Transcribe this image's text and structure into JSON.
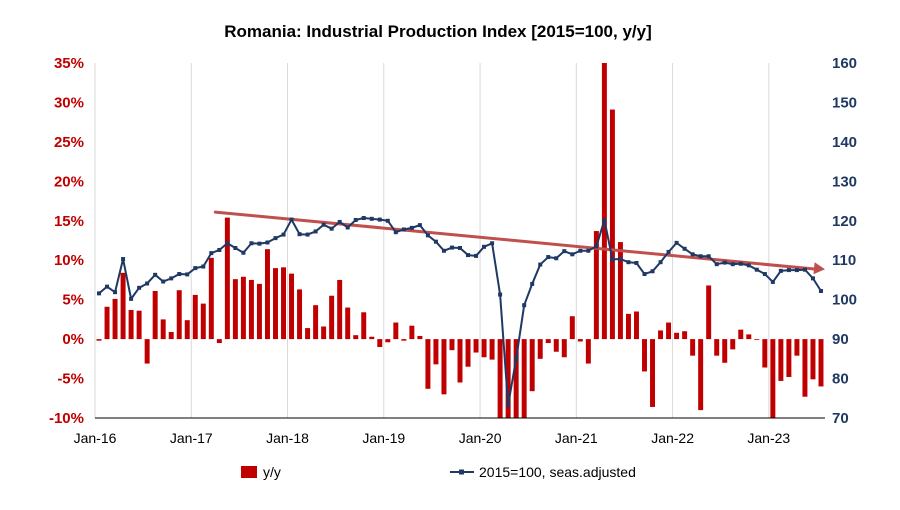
{
  "chart_data": {
    "type": "bar+line",
    "title": "Romania: Industrial Production Index [2015=100, y/y]",
    "x": [
      "2016-01",
      "2016-02",
      "2016-03",
      "2016-04",
      "2016-05",
      "2016-06",
      "2016-07",
      "2016-08",
      "2016-09",
      "2016-10",
      "2016-11",
      "2016-12",
      "2017-01",
      "2017-02",
      "2017-03",
      "2017-04",
      "2017-05",
      "2017-06",
      "2017-07",
      "2017-08",
      "2017-09",
      "2017-10",
      "2017-11",
      "2017-12",
      "2018-01",
      "2018-02",
      "2018-03",
      "2018-04",
      "2018-05",
      "2018-06",
      "2018-07",
      "2018-08",
      "2018-09",
      "2018-10",
      "2018-11",
      "2018-12",
      "2019-01",
      "2019-02",
      "2019-03",
      "2019-04",
      "2019-05",
      "2019-06",
      "2019-07",
      "2019-08",
      "2019-09",
      "2019-10",
      "2019-11",
      "2019-12",
      "2020-01",
      "2020-02",
      "2020-03",
      "2020-04",
      "2020-05",
      "2020-06",
      "2020-07",
      "2020-08",
      "2020-09",
      "2020-10",
      "2020-11",
      "2020-12",
      "2021-01",
      "2021-02",
      "2021-03",
      "2021-04",
      "2021-05",
      "2021-06",
      "2021-07",
      "2021-08",
      "2021-09",
      "2021-10",
      "2021-11",
      "2021-12",
      "2022-01",
      "2022-02",
      "2022-03",
      "2022-04",
      "2022-05",
      "2022-06",
      "2022-07",
      "2022-08",
      "2022-09",
      "2022-10",
      "2022-11",
      "2022-12",
      "2023-01",
      "2023-02",
      "2023-03",
      "2023-04",
      "2023-05",
      "2023-06",
      "2023-07"
    ],
    "x_tick_labels": [
      "Jan-16",
      "Jan-17",
      "Jan-18",
      "Jan-19",
      "Jan-20",
      "Jan-21",
      "Jan-22",
      "Jan-23"
    ],
    "x_tick_indices": [
      0,
      12,
      24,
      36,
      48,
      60,
      72,
      84
    ],
    "y_left": {
      "ticks": [
        "-10%",
        "-5%",
        "0%",
        "5%",
        "10%",
        "15%",
        "20%",
        "25%",
        "30%",
        "35%"
      ],
      "range": [
        -10,
        35
      ],
      "color": "#c00000"
    },
    "y_right": {
      "ticks": [
        "70",
        "80",
        "90",
        "100",
        "110",
        "120",
        "130",
        "140",
        "150",
        "160"
      ],
      "range": [
        70,
        160
      ],
      "color": "#1f3864"
    },
    "series": [
      {
        "name": "y/y",
        "type": "bar",
        "axis": "left",
        "color": "#c00000",
        "values": [
          -0.2,
          4.1,
          5.1,
          8.4,
          3.7,
          3.6,
          -3.1,
          6.1,
          2.5,
          0.9,
          6.2,
          2.4,
          5.6,
          4.5,
          10.3,
          -0.5,
          15.4,
          7.6,
          7.9,
          7.5,
          7.0,
          11.4,
          9.0,
          9.1,
          8.3,
          6.3,
          1.4,
          4.3,
          1.6,
          5.5,
          7.5,
          4.0,
          0.5,
          3.4,
          0.3,
          -1.0,
          -0.4,
          2.1,
          -0.2,
          1.7,
          0.4,
          -6.3,
          -3.2,
          -7.0,
          -1.4,
          -5.5,
          -3.5,
          -1.7,
          -2.3,
          -2.6,
          -10.0,
          -10.0,
          -10.0,
          -10.0,
          -6.6,
          -2.5,
          -0.5,
          -1.6,
          -2.3,
          2.9,
          -0.3,
          -3.1,
          13.7,
          35.0,
          29.1,
          12.3,
          3.2,
          3.5,
          -4.1,
          -8.6,
          1.1,
          2.1,
          0.8,
          1.0,
          -2.1,
          -9.0,
          6.8,
          -2.1,
          -3.0,
          -1.3,
          1.2,
          0.6,
          -0.1,
          -3.6,
          -10.0,
          -5.3,
          -4.8,
          -2.1,
          -7.3,
          -5.1,
          -6.0
        ]
      },
      {
        "name": "2015=100, seas.adjusted",
        "type": "line",
        "axis": "right",
        "color": "#1f3864",
        "values": [
          101.6,
          103.3,
          101.9,
          110.3,
          100.2,
          103.0,
          104.1,
          106.3,
          104.6,
          105.4,
          106.5,
          106.4,
          108.0,
          108.4,
          111.8,
          112.6,
          114.3,
          113.1,
          111.9,
          114.3,
          114.2,
          114.5,
          115.6,
          116.5,
          120.3,
          116.6,
          116.5,
          117.3,
          119.0,
          118.0,
          119.7,
          118.3,
          120.2,
          120.7,
          120.5,
          120.3,
          120.0,
          117.1,
          117.8,
          118.2,
          118.9,
          116.3,
          114.7,
          112.4,
          113.2,
          113.1,
          111.3,
          111.1,
          113.4,
          114.3,
          101.3,
          73.3,
          85.0,
          98.6,
          104.0,
          108.9,
          110.8,
          110.5,
          112.3,
          111.5,
          112.4,
          112.4,
          113.5,
          120.2,
          110.2,
          110.3,
          109.5,
          109.3,
          106.5,
          107.2,
          109.5,
          112.1,
          114.4,
          112.9,
          111.5,
          111.0,
          111.0,
          109.0,
          109.4,
          109.0,
          109.1,
          108.7,
          107.6,
          106.5,
          104.5,
          107.3,
          107.5,
          107.5,
          107.6,
          105.4,
          102.2
        ]
      }
    ],
    "trend_line": {
      "color": "#c0504d",
      "from": {
        "x": "2017-04",
        "value": 122.2
      },
      "to": {
        "x": "2023-08",
        "value": 107.7
      }
    },
    "legend": {
      "placement": "bottom",
      "entries": [
        "y/y",
        "2015=100, seas.adjusted"
      ]
    },
    "grid": "vertical-at-ticks"
  }
}
